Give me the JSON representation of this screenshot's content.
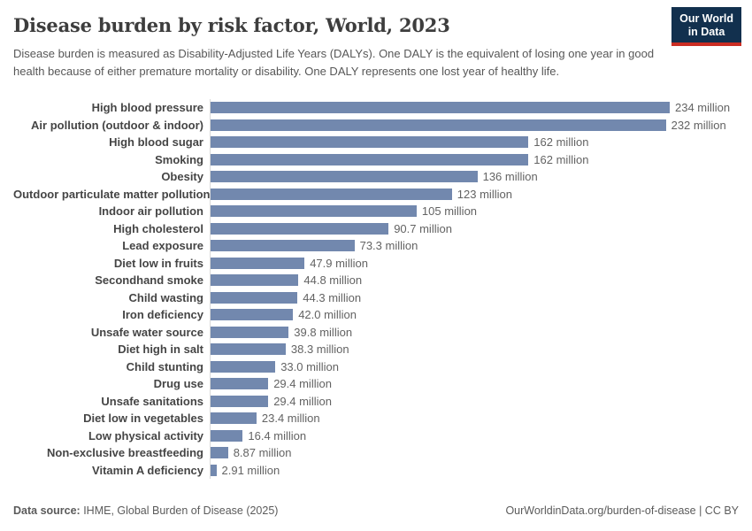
{
  "header": {
    "title": "Disease burden by risk factor, World, 2023",
    "subtitle": "Disease burden is measured as Disability-Adjusted Life Years (DALYs). One DALY is the equivalent of losing one year in good health because of either premature mortality or disability. One DALY represents one lost year of healthy life.",
    "logo": {
      "line1": "Our World",
      "line2": "in Data"
    }
  },
  "chart_data": {
    "type": "bar",
    "orientation": "horizontal",
    "title": "Disease burden by risk factor, World, 2023",
    "unit": "DALYs",
    "xlim": [
      0,
      234
    ],
    "grid": false,
    "legend": "none",
    "bar_color": "#7288ae",
    "axis_line_color": "#d9d9d9",
    "categories": [
      "High blood pressure",
      "Air pollution (outdoor & indoor)",
      "High blood sugar",
      "Smoking",
      "Obesity",
      "Outdoor particulate matter pollution",
      "Indoor air pollution",
      "High cholesterol",
      "Lead exposure",
      "Diet low in fruits",
      "Secondhand smoke",
      "Child wasting",
      "Iron deficiency",
      "Unsafe water source",
      "Diet high in salt",
      "Child stunting",
      "Drug use",
      "Unsafe sanitations",
      "Diet low in vegetables",
      "Low physical activity",
      "Non-exclusive breastfeeding",
      "Vitamin A deficiency"
    ],
    "values": [
      234,
      232,
      162,
      162,
      136,
      123,
      105,
      90.7,
      73.3,
      47.9,
      44.8,
      44.3,
      42.0,
      39.8,
      38.3,
      33.0,
      29.4,
      29.4,
      23.4,
      16.4,
      8.87,
      2.91
    ],
    "value_labels": [
      "234 million",
      "232 million",
      "162 million",
      "162 million",
      "136 million",
      "123 million",
      "105 million",
      "90.7 million",
      "73.3 million",
      "47.9 million",
      "44.8 million",
      "44.3 million",
      "42.0 million",
      "39.8 million",
      "38.3 million",
      "33.0 million",
      "29.4 million",
      "29.4 million",
      "23.4 million",
      "16.4 million",
      "8.87 million",
      "2.91 million"
    ]
  },
  "footer": {
    "source_label": "Data source:",
    "source_text": " IHME, Global Burden of Disease (2025)",
    "right_text": "OurWorldinData.org/burden-of-disease | CC BY"
  }
}
